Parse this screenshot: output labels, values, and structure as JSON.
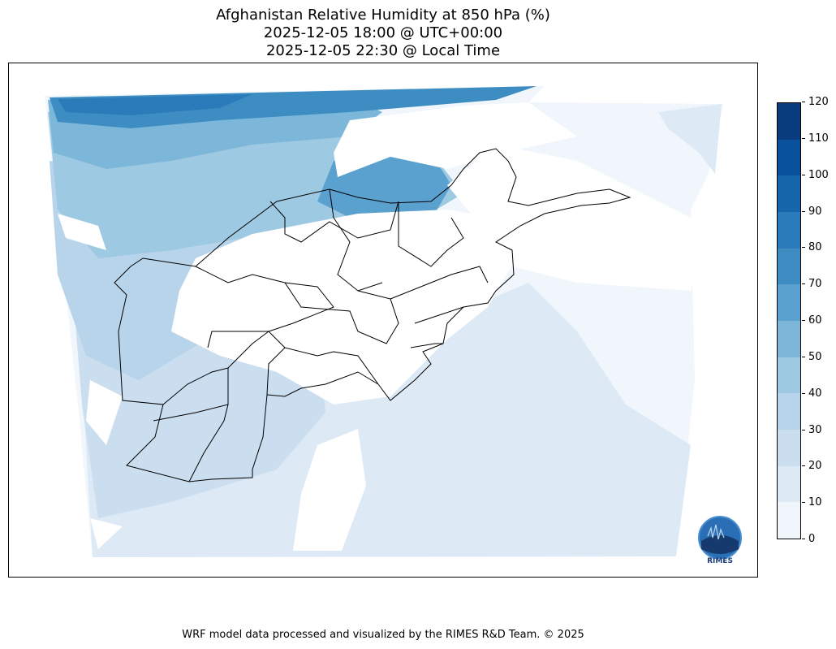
{
  "title": {
    "line1": "Afghanistan Relative Humidity at 850 hPa (%)",
    "line2": "2025-12-05 18:00 @ UTC+00:00",
    "line3": "2025-12-05 22:30 @ Local Time"
  },
  "colorbar": {
    "ticks": [
      "0",
      "10",
      "20",
      "30",
      "40",
      "50",
      "60",
      "70",
      "80",
      "90",
      "100",
      "110",
      "120"
    ],
    "colors": [
      "#f0f6fc",
      "#dde9f5",
      "#cbdef0",
      "#b7d4ea",
      "#9ec9e2",
      "#7cb7da",
      "#5aa1cf",
      "#3d8dc3",
      "#2b7bba",
      "#1765ab",
      "#0a519c",
      "#083c7c"
    ]
  },
  "logo": {
    "text": "RIMES"
  },
  "footer": "WRF model data processed and visualized by the RIMES R&D Team. © 2025"
}
